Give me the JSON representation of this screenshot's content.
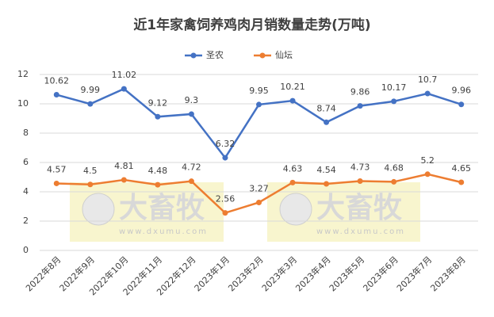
{
  "chart_data": {
    "type": "line",
    "title": "近1年家禽饲养鸡肉月销数量走势(万吨)",
    "categories": [
      "2022年8月",
      "2022年9月",
      "2022年10月",
      "2022年11月",
      "2022年12月",
      "2023年1月",
      "2023年2月",
      "2023年3月",
      "2023年4月",
      "2023年5月",
      "2023年6月",
      "2023年7月",
      "2023年8月"
    ],
    "series": [
      {
        "name": "圣农",
        "color": "#4472c4",
        "values": [
          10.62,
          9.99,
          11.02,
          9.12,
          9.3,
          6.32,
          9.95,
          10.21,
          8.74,
          9.86,
          10.17,
          10.7,
          9.96
        ]
      },
      {
        "name": "仙坛",
        "color": "#ed7d31",
        "values": [
          4.57,
          4.5,
          4.81,
          4.48,
          4.72,
          2.56,
          3.27,
          4.63,
          4.54,
          4.73,
          4.68,
          5.2,
          4.65
        ]
      }
    ],
    "ylim": [
      0,
      12
    ],
    "yticks": [
      0,
      2,
      4,
      6,
      8,
      10,
      12
    ],
    "grid": true,
    "legend": "top",
    "watermark": {
      "brand": "大畜牧",
      "url": "www.dxumu.com"
    }
  }
}
